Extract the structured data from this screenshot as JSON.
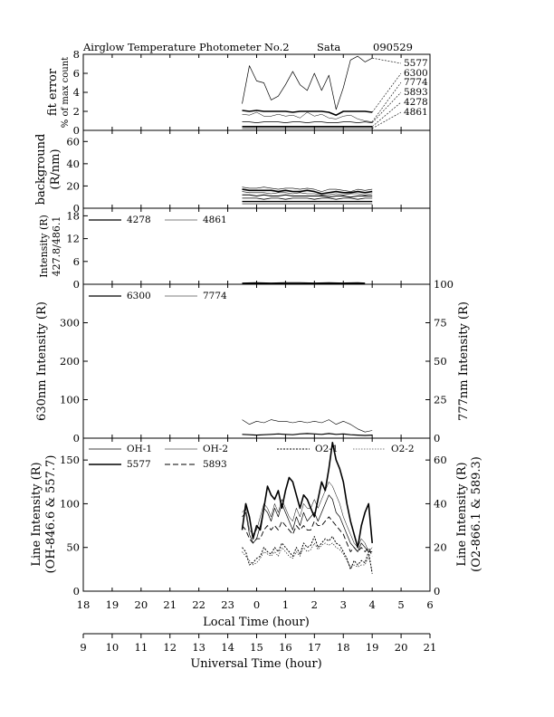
{
  "title": {
    "instrument": "Airglow Temperature Photometer No.2",
    "site": "Sata",
    "date": "090529"
  },
  "x_axes": {
    "local": {
      "label": "Local Time (hour)",
      "ticks": [
        "18",
        "19",
        "20",
        "21",
        "22",
        "23",
        "0",
        "1",
        "2",
        "3",
        "4",
        "5",
        "6"
      ]
    },
    "universal": {
      "label": "Universal Time (hour)",
      "ticks": [
        "9",
        "10",
        "11",
        "12",
        "13",
        "14",
        "15",
        "16",
        "17",
        "18",
        "19",
        "20",
        "21"
      ]
    }
  },
  "chart_data": [
    {
      "type": "line",
      "panel": "fit-error",
      "ylabel": [
        "fit error",
        "% of max count"
      ],
      "ylim": [
        0,
        8
      ],
      "yticks": [
        "0",
        "2",
        "4",
        "6",
        "8"
      ],
      "x_units": "Universal Time (hour)",
      "x": [
        14.5,
        14.75,
        15.0,
        15.25,
        15.5,
        15.75,
        16.0,
        16.25,
        16.5,
        16.75,
        17.0,
        17.25,
        17.5,
        17.75,
        18.0,
        18.25,
        18.5,
        18.75,
        19.0
      ],
      "series": [
        {
          "name": "5577",
          "values": [
            2.8,
            6.8,
            5.2,
            5.0,
            3.2,
            3.6,
            4.8,
            6.2,
            4.8,
            4.2,
            6.0,
            4.2,
            5.8,
            2.2,
            4.5,
            7.4,
            7.8,
            7.2,
            7.6
          ]
        },
        {
          "name": "6300",
          "values": [
            2.1,
            2.0,
            2.1,
            2.0,
            2.0,
            2.0,
            2.0,
            1.9,
            2.0,
            2.0,
            2.0,
            2.0,
            1.9,
            1.6,
            2.0,
            2.0,
            2.0,
            2.0,
            1.9
          ]
        },
        {
          "name": "7774",
          "values": [
            1.7,
            1.6,
            1.9,
            1.5,
            1.5,
            1.7,
            1.5,
            1.6,
            1.3,
            1.9,
            1.5,
            1.7,
            1.3,
            1.2,
            1.5,
            1.6,
            1.2,
            1.0,
            0.9
          ]
        },
        {
          "name": "5893",
          "values": [
            0.9,
            0.9,
            0.8,
            0.9,
            0.9,
            0.9,
            0.8,
            0.9,
            0.9,
            0.8,
            0.9,
            0.9,
            0.8,
            0.8,
            0.9,
            0.9,
            0.8,
            0.9,
            0.8
          ]
        },
        {
          "name": "4278",
          "values": [
            0.4,
            0.4,
            0.4,
            0.4,
            0.4,
            0.4,
            0.4,
            0.4,
            0.4,
            0.4,
            0.4,
            0.4,
            0.4,
            0.4,
            0.4,
            0.4,
            0.4,
            0.4,
            0.4
          ]
        },
        {
          "name": "4861",
          "values": [
            0.2,
            0.2,
            0.2,
            0.2,
            0.2,
            0.2,
            0.2,
            0.2,
            0.2,
            0.2,
            0.2,
            0.2,
            0.2,
            0.2,
            0.2,
            0.2,
            0.2,
            0.2,
            0.2
          ]
        }
      ],
      "label_order": [
        "5577",
        "6300",
        "7774",
        "5893",
        "4278",
        "4861"
      ]
    },
    {
      "type": "line",
      "panel": "background",
      "ylabel": [
        "background",
        "(R/nm)"
      ],
      "ylim": [
        0,
        70
      ],
      "yticks": [
        "0",
        "20",
        "40",
        "60"
      ],
      "x_units": "Universal Time (hour)",
      "x": [
        14.5,
        14.75,
        15.0,
        15.25,
        15.5,
        15.75,
        16.0,
        16.25,
        16.5,
        16.75,
        17.0,
        17.25,
        17.5,
        17.75,
        18.0,
        18.25,
        18.5,
        18.75,
        19.0
      ],
      "series": [
        {
          "values": [
            19,
            18,
            18,
            19,
            18,
            17,
            18,
            18,
            17,
            18,
            17,
            15,
            17,
            17,
            16,
            15,
            17,
            16,
            17
          ]
        },
        {
          "values": [
            17,
            16,
            16,
            16,
            16,
            15,
            16,
            15,
            15,
            16,
            15,
            13,
            14,
            15,
            14,
            14,
            15,
            14,
            15
          ]
        },
        {
          "values": [
            15,
            14,
            14,
            14,
            13,
            14,
            14,
            13,
            14,
            13,
            13,
            12,
            12,
            13,
            12,
            13,
            13,
            12,
            13
          ]
        },
        {
          "values": [
            12,
            12,
            11,
            12,
            11,
            11,
            12,
            11,
            11,
            11,
            11,
            11,
            10,
            11,
            11,
            10,
            11,
            11,
            11
          ]
        },
        {
          "values": [
            9,
            9,
            9,
            8,
            9,
            9,
            8,
            9,
            9,
            9,
            8,
            9,
            9,
            8,
            9,
            9,
            8,
            9,
            9
          ]
        },
        {
          "values": [
            6,
            6,
            6,
            6,
            6,
            6,
            6,
            6,
            6,
            6,
            6,
            6,
            6,
            6,
            6,
            6,
            6,
            6,
            6
          ]
        },
        {
          "values": [
            4,
            4,
            4,
            4,
            4,
            4,
            4,
            4,
            4,
            4,
            4,
            4,
            4,
            4,
            4,
            4,
            4,
            4,
            4
          ]
        }
      ]
    },
    {
      "type": "line",
      "panel": "blue-intensity",
      "ylabel": [
        "Intensity (R)",
        "427.8/486.1"
      ],
      "ylim": [
        0,
        20
      ],
      "yticks": [
        "0",
        "6",
        "12",
        "18"
      ],
      "x_units": "Universal Time (hour)",
      "legend": "top-left",
      "x": [
        14.5,
        15.0,
        15.5,
        16.0,
        16.5,
        17.0,
        17.5,
        18.0,
        18.5,
        18.75
      ],
      "series": [
        {
          "name": "4278",
          "values": [
            0.3,
            0.4,
            0.3,
            0.4,
            0.4,
            0.3,
            0.4,
            0.3,
            0.4,
            0.3
          ]
        },
        {
          "name": "4861",
          "values": [
            0.2,
            0.2,
            0.2,
            0.2,
            0.2,
            0.2,
            0.2,
            0.2,
            0.2,
            0.2
          ]
        }
      ]
    },
    {
      "type": "line",
      "panel": "oi-intensity",
      "ylabel": "630nm Intensity (R)",
      "ylabel_right": "777nm Intensity (R)",
      "ylim": [
        0,
        400
      ],
      "yticks": [
        "0",
        "100",
        "200",
        "300"
      ],
      "ylim_right": [
        0,
        100
      ],
      "yticks_right": [
        "0",
        "25",
        "50",
        "75",
        "100"
      ],
      "x_units": "Universal Time (hour)",
      "legend": "top-left",
      "x": [
        14.5,
        14.75,
        15.0,
        15.25,
        15.5,
        15.75,
        16.0,
        16.25,
        16.5,
        16.75,
        17.0,
        17.25,
        17.5,
        17.75,
        18.0,
        18.25,
        18.5,
        18.75,
        19.0
      ],
      "series": [
        {
          "name": "6300",
          "axis": "left",
          "values": [
            10,
            9,
            8,
            9,
            10,
            11,
            10,
            9,
            11,
            12,
            11,
            10,
            12,
            10,
            11,
            9,
            8,
            7,
            8
          ]
        },
        {
          "name": "7774",
          "axis": "right",
          "values": [
            12,
            9,
            11,
            10,
            12,
            11,
            11,
            10,
            11,
            10,
            11,
            10,
            12,
            9,
            11,
            9,
            6,
            4,
            5
          ]
        }
      ]
    },
    {
      "type": "line",
      "panel": "line-intensity",
      "ylabel": [
        "Line Intensity (R)",
        "(OH-846.6 & 557.7)"
      ],
      "ylabel_right": [
        "Line Intensity (R)",
        "(O2-866.1 & 589.3)"
      ],
      "ylim": [
        0,
        175
      ],
      "yticks": [
        "0",
        "50",
        "100",
        "150"
      ],
      "ylim_right": [
        0,
        70
      ],
      "yticks_right": [
        "0",
        "20",
        "40",
        "60"
      ],
      "x_units": "Universal Time (hour)",
      "legend": "top",
      "x": [
        14.5,
        14.625,
        14.75,
        14.875,
        15.0,
        15.125,
        15.25,
        15.375,
        15.5,
        15.625,
        15.75,
        15.875,
        16.0,
        16.125,
        16.25,
        16.375,
        16.5,
        16.625,
        16.75,
        16.875,
        17.0,
        17.125,
        17.25,
        17.375,
        17.5,
        17.625,
        17.75,
        17.875,
        18.0,
        18.125,
        18.25,
        18.375,
        18.5,
        18.625,
        18.75,
        18.875,
        19.0
      ],
      "series": [
        {
          "name": "OH-1",
          "axis": "left",
          "values": [
            85,
            90,
            65,
            55,
            60,
            75,
            95,
            90,
            80,
            95,
            85,
            100,
            90,
            80,
            70,
            85,
            75,
            90,
            80,
            85,
            90,
            80,
            90,
            100,
            110,
            105,
            90,
            85,
            75,
            65,
            55,
            50,
            45,
            55,
            50,
            45,
            45
          ]
        },
        {
          "name": "OH-2",
          "axis": "left",
          "values": [
            90,
            95,
            70,
            65,
            70,
            85,
            100,
            95,
            85,
            100,
            90,
            105,
            95,
            85,
            80,
            95,
            85,
            100,
            95,
            95,
            105,
            95,
            105,
            115,
            125,
            120,
            110,
            100,
            85,
            75,
            65,
            55,
            50,
            60,
            55,
            45,
            50
          ]
        },
        {
          "name": "O2-1",
          "axis": "right",
          "values": [
            20,
            18,
            12,
            13,
            15,
            16,
            20,
            18,
            17,
            20,
            18,
            22,
            20,
            18,
            16,
            20,
            17,
            22,
            20,
            21,
            25,
            20,
            22,
            24,
            23,
            25,
            22,
            21,
            18,
            15,
            10,
            14,
            12,
            14,
            13,
            18,
            8
          ]
        },
        {
          "name": "O2-2",
          "axis": "right",
          "values": [
            18,
            16,
            14,
            12,
            13,
            15,
            18,
            17,
            16,
            18,
            16,
            20,
            18,
            16,
            15,
            18,
            16,
            20,
            18,
            19,
            22,
            19,
            21,
            22,
            21,
            22,
            20,
            19,
            17,
            14,
            11,
            12,
            11,
            12,
            12,
            16,
            9
          ]
        },
        {
          "name": "5577",
          "axis": "left",
          "values": [
            70,
            100,
            85,
            60,
            75,
            70,
            95,
            120,
            110,
            105,
            115,
            95,
            115,
            130,
            125,
            110,
            95,
            110,
            105,
            95,
            85,
            105,
            125,
            115,
            140,
            170,
            150,
            140,
            125,
            100,
            80,
            65,
            50,
            75,
            90,
            100,
            55
          ]
        },
        {
          "name": "5893",
          "axis": "left",
          "values": [
            75,
            70,
            60,
            55,
            60,
            60,
            70,
            75,
            70,
            75,
            70,
            80,
            75,
            70,
            65,
            75,
            70,
            75,
            70,
            70,
            80,
            75,
            75,
            80,
            85,
            80,
            75,
            70,
            65,
            55,
            45,
            50,
            45,
            50,
            45,
            50,
            40
          ]
        }
      ]
    }
  ]
}
